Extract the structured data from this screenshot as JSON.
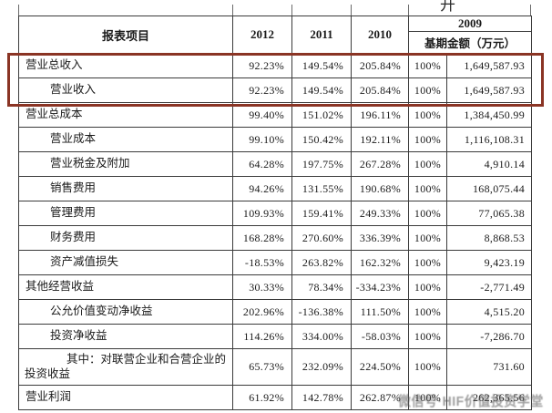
{
  "page": {
    "partial_top_text": "开"
  },
  "colors": {
    "table_border": "#3b3b3b",
    "highlight_red": "#8a3424",
    "text": "#1a1a1a",
    "watermark_gray": "#585858"
  },
  "watermark": {
    "text": "微信号·HIF价值投资学堂"
  },
  "table": {
    "header": {
      "item_col": "报表项目",
      "year_2012": "2012",
      "year_2011": "2011",
      "year_2010": "2010",
      "year_2009": "2009",
      "base_amount_label": "基期金额（万元）"
    },
    "rows": [
      {
        "label": "营业总收入",
        "level": 0,
        "highlighted": true,
        "values": [
          "92.23%",
          "149.54%",
          "205.84%",
          "100%",
          "1,649,587.93"
        ]
      },
      {
        "label": "营业收入",
        "level": 1,
        "highlighted": true,
        "values": [
          "92.23%",
          "149.54%",
          "205.84%",
          "100%",
          "1,649,587.93"
        ]
      },
      {
        "label": "营业总成本",
        "level": 0,
        "values": [
          "99.40%",
          "151.02%",
          "196.11%",
          "100%",
          "1,384,450.99"
        ]
      },
      {
        "label": "营业成本",
        "level": 1,
        "values": [
          "99.10%",
          "150.42%",
          "192.11%",
          "100%",
          "1,116,108.31"
        ]
      },
      {
        "label": "营业税金及附加",
        "level": 1,
        "values": [
          "64.28%",
          "197.75%",
          "267.28%",
          "100%",
          "4,910.14"
        ]
      },
      {
        "label": "销售费用",
        "level": 1,
        "values": [
          "94.26%",
          "131.55%",
          "190.68%",
          "100%",
          "168,075.44"
        ]
      },
      {
        "label": "管理费用",
        "level": 1,
        "values": [
          "109.93%",
          "159.41%",
          "249.33%",
          "100%",
          "77,065.38"
        ]
      },
      {
        "label": "财务费用",
        "level": 1,
        "values": [
          "168.28%",
          "270.60%",
          "336.39%",
          "100%",
          "8,868.53"
        ]
      },
      {
        "label": "资产减值损失",
        "level": 1,
        "values": [
          "-18.53%",
          "263.82%",
          "162.32%",
          "100%",
          "9,423.19"
        ]
      },
      {
        "label": "其他经营收益",
        "level": 0,
        "values": [
          "30.33%",
          "78.34%",
          "-334.23%",
          "100%",
          "-2,771.49"
        ]
      },
      {
        "label": "公允价值变动净收益",
        "level": 1,
        "values": [
          "202.96%",
          "-136.38%",
          "111.50%",
          "100%",
          "4,515.20"
        ]
      },
      {
        "label": "投资净收益",
        "level": 1,
        "values": [
          "114.26%",
          "334.00%",
          "-58.03%",
          "100%",
          "-7,286.70"
        ]
      },
      {
        "label": "其中：对联营企业和合营企业的投资收益",
        "level": 2,
        "double": true,
        "values": [
          "65.73%",
          "232.09%",
          "224.50%",
          "100%",
          "731.60"
        ]
      },
      {
        "label": "营业利润",
        "level": 0,
        "values": [
          "61.92%",
          "142.78%",
          "262.87%",
          "100%",
          "262,365.56"
        ]
      }
    ]
  }
}
